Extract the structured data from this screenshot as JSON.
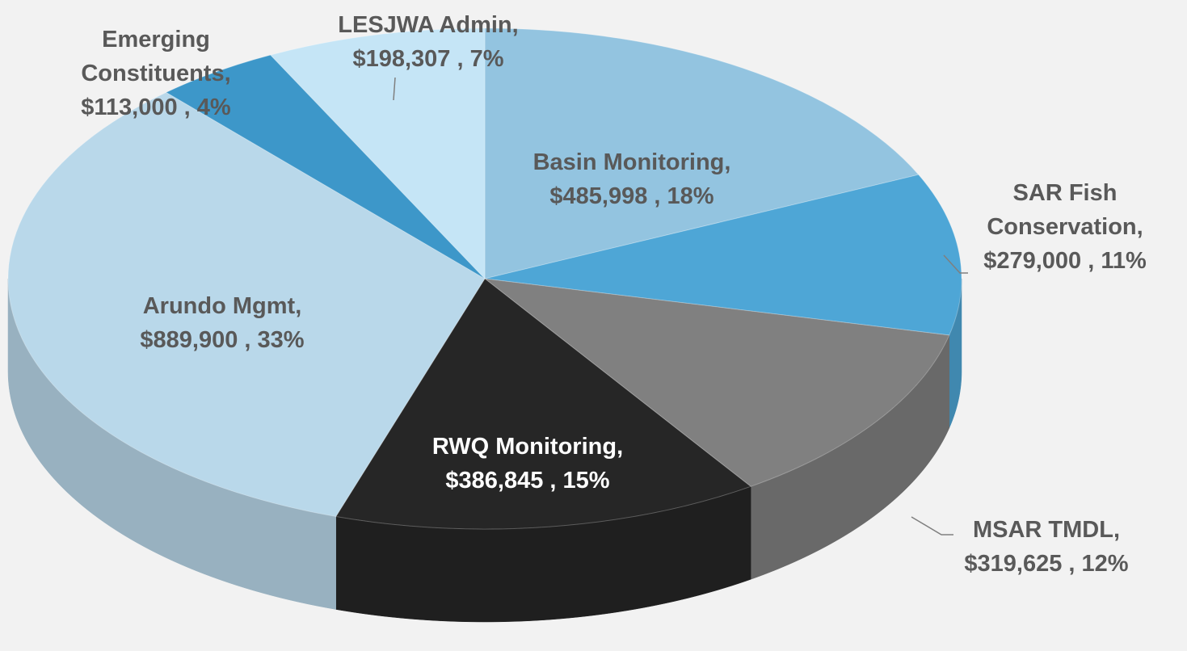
{
  "chart_data": {
    "type": "pie3d",
    "categories": [
      "Basin Monitoring,",
      "SAR Fish Conservation,",
      "MSAR TMDL,",
      "RWQ Monitoring,",
      "Arundo Mgmt,",
      "Emerging Constituents,",
      "LESJWA Admin,"
    ],
    "values": [
      485998,
      279000,
      319625,
      386845,
      889900,
      113000,
      198307
    ],
    "value_labels": [
      "$485,998",
      "$279,000",
      "$319,625",
      "$386,845",
      "$889,900",
      "$113,000",
      "$198,307"
    ],
    "label_separator": " , ",
    "percents": [
      18,
      11,
      12,
      15,
      33,
      4,
      7
    ],
    "percent_labels": [
      "18%",
      "11%",
      "12%",
      "15%",
      "33%",
      "4%",
      "7%"
    ],
    "colors": [
      "#93c4e0",
      "#4ea6d6",
      "#808080",
      "#262626",
      "#b9d8ea",
      "#3d97c9",
      "#c5e5f6"
    ]
  }
}
